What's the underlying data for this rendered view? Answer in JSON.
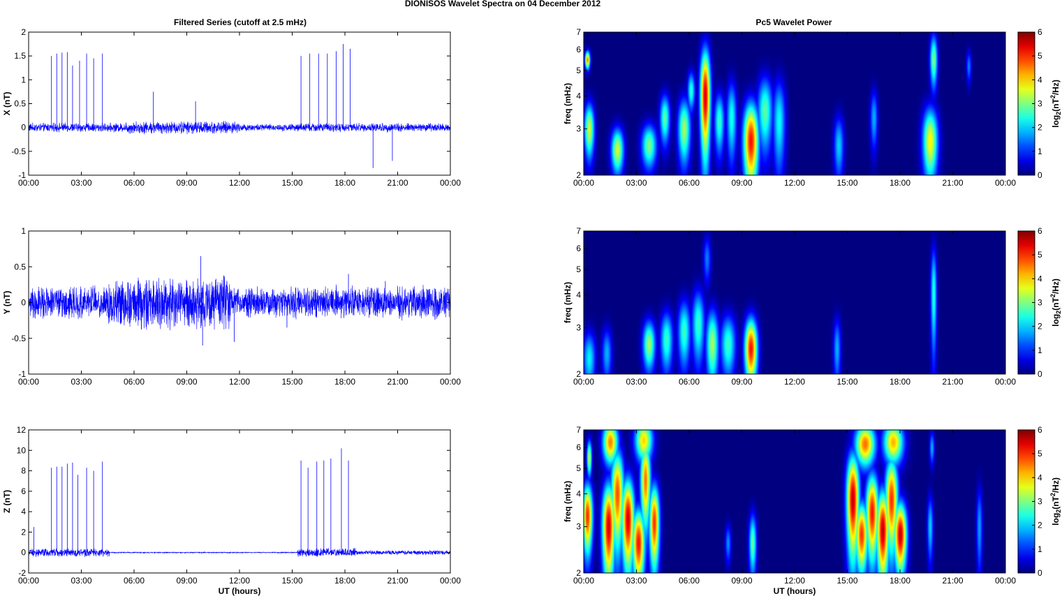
{
  "figure": {
    "title": "DIONISOS Wavelet Spectra on 04 December  2012",
    "left_title": "Filtered Series (cutoff at 2.5 mHz)",
    "right_title": "Pc5 Wavelet Power",
    "xlabel": "UT (hours)",
    "freq_label": "freq (mHz)",
    "colorbar_label": "log2(nT2/Hz)"
  },
  "colors": {
    "series_line": "#0000ff",
    "colormap": "jet",
    "background": "#000080"
  },
  "chart_data": [
    {
      "type": "line",
      "ylabel": "X (nT)",
      "xlim_hours": [
        0,
        24
      ],
      "xticks": [
        "00:00",
        "03:00",
        "06:00",
        "09:00",
        "12:00",
        "15:00",
        "18:00",
        "21:00",
        "00:00"
      ],
      "ylim": [
        -1,
        2
      ],
      "yticks": [
        "-1",
        "-0.5",
        "0",
        "0.5",
        "1",
        "1.5",
        "2"
      ],
      "noise_amplitude": 0.07,
      "spikes": [
        {
          "x": 1.3,
          "y": 1.5
        },
        {
          "x": 1.6,
          "y": 1.55
        },
        {
          "x": 1.9,
          "y": 1.57
        },
        {
          "x": 2.2,
          "y": 1.58
        },
        {
          "x": 2.5,
          "y": 1.3
        },
        {
          "x": 2.9,
          "y": 1.4
        },
        {
          "x": 3.3,
          "y": 1.55
        },
        {
          "x": 3.7,
          "y": 1.45
        },
        {
          "x": 4.2,
          "y": 1.55
        },
        {
          "x": 7.1,
          "y": 0.75
        },
        {
          "x": 9.5,
          "y": 0.55
        },
        {
          "x": 15.5,
          "y": 1.5
        },
        {
          "x": 16.0,
          "y": 1.55
        },
        {
          "x": 16.5,
          "y": 1.55
        },
        {
          "x": 17.0,
          "y": 1.55
        },
        {
          "x": 17.5,
          "y": 1.6
        },
        {
          "x": 17.9,
          "y": 1.75
        },
        {
          "x": 18.3,
          "y": 1.65
        },
        {
          "x": 19.6,
          "y": -0.85
        },
        {
          "x": 20.7,
          "y": -0.7
        }
      ]
    },
    {
      "type": "line",
      "ylabel": "Y (nT)",
      "xlim_hours": [
        0,
        24
      ],
      "xticks": [
        "00:00",
        "03:00",
        "06:00",
        "09:00",
        "12:00",
        "15:00",
        "18:00",
        "21:00",
        "00:00"
      ],
      "ylim": [
        -1,
        1
      ],
      "yticks": [
        "-1",
        "-0.5",
        "0",
        "0.5",
        "1"
      ],
      "noise_amplitude": 0.2,
      "spikes": [
        {
          "x": 9.8,
          "y": 0.65
        },
        {
          "x": 9.9,
          "y": -0.6
        },
        {
          "x": 11.7,
          "y": -0.55
        },
        {
          "x": 14.7,
          "y": -0.35
        },
        {
          "x": 18.2,
          "y": 0.4
        },
        {
          "x": 20.3,
          "y": 0.3
        }
      ]
    },
    {
      "type": "line",
      "ylabel": "Z (nT)",
      "xlim_hours": [
        0,
        24
      ],
      "xticks": [
        "00:00",
        "03:00",
        "06:00",
        "09:00",
        "12:00",
        "15:00",
        "18:00",
        "21:00",
        "00:00"
      ],
      "xlabel": "UT (hours)",
      "ylim": [
        -2,
        12
      ],
      "yticks": [
        "-2",
        "0",
        "2",
        "4",
        "6",
        "8",
        "10",
        "12"
      ],
      "noise_amplitude": 0.3,
      "spikes": [
        {
          "x": 0.3,
          "y": 2.5
        },
        {
          "x": 1.3,
          "y": 8.3
        },
        {
          "x": 1.6,
          "y": 8.4
        },
        {
          "x": 1.9,
          "y": 8.4
        },
        {
          "x": 2.2,
          "y": 8.7
        },
        {
          "x": 2.5,
          "y": 8.8
        },
        {
          "x": 2.8,
          "y": 7.6
        },
        {
          "x": 3.3,
          "y": 8.3
        },
        {
          "x": 3.7,
          "y": 8.0
        },
        {
          "x": 4.2,
          "y": 8.9
        },
        {
          "x": 15.5,
          "y": 9.0
        },
        {
          "x": 15.9,
          "y": 8.3
        },
        {
          "x": 16.4,
          "y": 8.9
        },
        {
          "x": 16.8,
          "y": 9.0
        },
        {
          "x": 17.2,
          "y": 9.2
        },
        {
          "x": 17.8,
          "y": 10.2
        },
        {
          "x": 18.2,
          "y": 9.0
        }
      ]
    },
    {
      "type": "heatmap",
      "ylabel": "freq (mHz)",
      "xlim_hours": [
        0,
        24
      ],
      "xticks": [
        "00:00",
        "03:00",
        "06:00",
        "09:00",
        "12:00",
        "15:00",
        "18:00",
        "21:00",
        "00:00"
      ],
      "yscale": "log",
      "ylim": [
        2,
        7
      ],
      "yticks": [
        "2",
        "3",
        "4",
        "5",
        "6",
        "7"
      ],
      "clim": [
        0,
        6
      ],
      "colorbar_ticks": [
        "0",
        "1",
        "2",
        "3",
        "4",
        "5",
        "6"
      ],
      "blobs": [
        {
          "t": 0.2,
          "f": 5.5,
          "p": 4.5,
          "wt": 0.1,
          "wf": 0.3
        },
        {
          "t": 0.3,
          "f": 3.0,
          "p": 3.5,
          "wt": 0.2,
          "wf": 0.5
        },
        {
          "t": 1.9,
          "f": 2.5,
          "p": 3.5,
          "wt": 0.25,
          "wf": 0.35
        },
        {
          "t": 3.7,
          "f": 2.6,
          "p": 3.0,
          "wt": 0.3,
          "wf": 0.35
        },
        {
          "t": 4.6,
          "f": 3.3,
          "p": 2.8,
          "wt": 0.2,
          "wf": 0.5
        },
        {
          "t": 5.7,
          "f": 3.0,
          "p": 3.2,
          "wt": 0.25,
          "wf": 0.6
        },
        {
          "t": 6.1,
          "f": 4.2,
          "p": 2.5,
          "wt": 0.15,
          "wf": 0.5
        },
        {
          "t": 6.9,
          "f": 4.0,
          "p": 5.5,
          "wt": 0.2,
          "wf": 1.3
        },
        {
          "t": 7.7,
          "f": 3.2,
          "p": 2.6,
          "wt": 0.2,
          "wf": 0.6
        },
        {
          "t": 8.4,
          "f": 3.3,
          "p": 2.4,
          "wt": 0.2,
          "wf": 0.8
        },
        {
          "t": 9.5,
          "f": 2.7,
          "p": 5.2,
          "wt": 0.3,
          "wf": 0.7
        },
        {
          "t": 10.3,
          "f": 3.5,
          "p": 2.8,
          "wt": 0.3,
          "wf": 0.8
        },
        {
          "t": 11.1,
          "f": 3.2,
          "p": 2.3,
          "wt": 0.25,
          "wf": 0.9
        },
        {
          "t": 14.5,
          "f": 2.6,
          "p": 2.0,
          "wt": 0.2,
          "wf": 0.5
        },
        {
          "t": 19.7,
          "f": 2.7,
          "p": 3.8,
          "wt": 0.3,
          "wf": 0.6
        },
        {
          "t": 19.9,
          "f": 5.5,
          "p": 3.0,
          "wt": 0.15,
          "wf": 0.9
        },
        {
          "t": 16.5,
          "f": 3.3,
          "p": 1.8,
          "wt": 0.15,
          "wf": 0.6
        },
        {
          "t": 21.9,
          "f": 5.2,
          "p": 1.5,
          "wt": 0.1,
          "wf": 0.5
        }
      ]
    },
    {
      "type": "heatmap",
      "ylabel": "freq (mHz)",
      "xlim_hours": [
        0,
        24
      ],
      "xticks": [
        "00:00",
        "03:00",
        "06:00",
        "09:00",
        "12:00",
        "15:00",
        "18:00",
        "21:00",
        "00:00"
      ],
      "yscale": "log",
      "ylim": [
        2,
        7
      ],
      "yticks": [
        "2",
        "3",
        "4",
        "5",
        "6",
        "7"
      ],
      "clim": [
        0,
        6
      ],
      "colorbar_ticks": [
        "0",
        "1",
        "2",
        "3",
        "4",
        "5",
        "6"
      ],
      "blobs": [
        {
          "t": 0.3,
          "f": 2.3,
          "p": 2.2,
          "wt": 0.25,
          "wf": 0.4
        },
        {
          "t": 1.3,
          "f": 2.4,
          "p": 1.8,
          "wt": 0.2,
          "wf": 0.4
        },
        {
          "t": 3.7,
          "f": 2.6,
          "p": 3.2,
          "wt": 0.25,
          "wf": 0.4
        },
        {
          "t": 4.7,
          "f": 2.7,
          "p": 2.6,
          "wt": 0.25,
          "wf": 0.5
        },
        {
          "t": 5.7,
          "f": 2.9,
          "p": 2.6,
          "wt": 0.25,
          "wf": 0.6
        },
        {
          "t": 6.5,
          "f": 3.1,
          "p": 2.6,
          "wt": 0.25,
          "wf": 0.7
        },
        {
          "t": 7.3,
          "f": 2.6,
          "p": 3.2,
          "wt": 0.25,
          "wf": 0.6
        },
        {
          "t": 8.2,
          "f": 2.6,
          "p": 2.6,
          "wt": 0.3,
          "wf": 0.5
        },
        {
          "t": 9.5,
          "f": 2.5,
          "p": 5.2,
          "wt": 0.25,
          "wf": 0.5
        },
        {
          "t": 7.0,
          "f": 5.5,
          "p": 1.5,
          "wt": 0.15,
          "wf": 0.8
        },
        {
          "t": 14.4,
          "f": 2.5,
          "p": 1.8,
          "wt": 0.15,
          "wf": 0.5
        },
        {
          "t": 19.9,
          "f": 4.0,
          "p": 2.5,
          "wt": 0.12,
          "wf": 1.3
        }
      ]
    },
    {
      "type": "heatmap",
      "ylabel": "freq (mHz)",
      "xlim_hours": [
        0,
        24
      ],
      "xticks": [
        "00:00",
        "03:00",
        "06:00",
        "09:00",
        "12:00",
        "15:00",
        "18:00",
        "21:00",
        "00:00"
      ],
      "xlabel": "UT (hours)",
      "yscale": "log",
      "ylim": [
        2,
        7
      ],
      "yticks": [
        "2",
        "3",
        "4",
        "5",
        "6",
        "7"
      ],
      "clim": [
        0,
        6
      ],
      "colorbar_ticks": [
        "0",
        "1",
        "2",
        "3",
        "4",
        "5",
        "6"
      ],
      "blobs": [
        {
          "t": 0.2,
          "f": 3.3,
          "p": 5.0,
          "wt": 0.2,
          "wf": 0.7
        },
        {
          "t": 0.3,
          "f": 5.5,
          "p": 3.5,
          "wt": 0.1,
          "wf": 0.6
        },
        {
          "t": 1.4,
          "f": 3.0,
          "p": 5.5,
          "wt": 0.25,
          "wf": 0.9
        },
        {
          "t": 1.9,
          "f": 4.0,
          "p": 4.8,
          "wt": 0.25,
          "wf": 1.2
        },
        {
          "t": 2.5,
          "f": 3.2,
          "p": 5.5,
          "wt": 0.25,
          "wf": 0.9
        },
        {
          "t": 3.1,
          "f": 2.6,
          "p": 5.2,
          "wt": 0.25,
          "wf": 0.6
        },
        {
          "t": 3.5,
          "f": 4.5,
          "p": 4.6,
          "wt": 0.2,
          "wf": 1.2
        },
        {
          "t": 4.0,
          "f": 3.1,
          "p": 5.0,
          "wt": 0.2,
          "wf": 0.8
        },
        {
          "t": 1.5,
          "f": 6.3,
          "p": 4.5,
          "wt": 0.3,
          "wf": 0.8
        },
        {
          "t": 3.4,
          "f": 6.4,
          "p": 4.0,
          "wt": 0.35,
          "wf": 0.8
        },
        {
          "t": 9.6,
          "f": 2.6,
          "p": 2.8,
          "wt": 0.15,
          "wf": 0.5
        },
        {
          "t": 8.2,
          "f": 2.6,
          "p": 1.6,
          "wt": 0.12,
          "wf": 0.3
        },
        {
          "t": 15.3,
          "f": 3.8,
          "p": 5.6,
          "wt": 0.25,
          "wf": 1.2
        },
        {
          "t": 15.8,
          "f": 2.8,
          "p": 5.0,
          "wt": 0.25,
          "wf": 0.6
        },
        {
          "t": 16.4,
          "f": 3.4,
          "p": 5.2,
          "wt": 0.25,
          "wf": 0.9
        },
        {
          "t": 17.0,
          "f": 2.9,
          "p": 5.6,
          "wt": 0.25,
          "wf": 0.8
        },
        {
          "t": 17.5,
          "f": 3.8,
          "p": 5.0,
          "wt": 0.25,
          "wf": 1.1
        },
        {
          "t": 18.0,
          "f": 2.8,
          "p": 5.6,
          "wt": 0.25,
          "wf": 0.6
        },
        {
          "t": 16.0,
          "f": 6.2,
          "p": 4.6,
          "wt": 0.4,
          "wf": 0.8
        },
        {
          "t": 17.6,
          "f": 6.3,
          "p": 4.2,
          "wt": 0.4,
          "wf": 0.8
        },
        {
          "t": 19.7,
          "f": 3.0,
          "p": 2.0,
          "wt": 0.12,
          "wf": 0.6
        },
        {
          "t": 19.8,
          "f": 6.0,
          "p": 1.8,
          "wt": 0.1,
          "wf": 0.6
        },
        {
          "t": 22.5,
          "f": 3.0,
          "p": 1.7,
          "wt": 0.12,
          "wf": 0.8
        }
      ]
    }
  ]
}
